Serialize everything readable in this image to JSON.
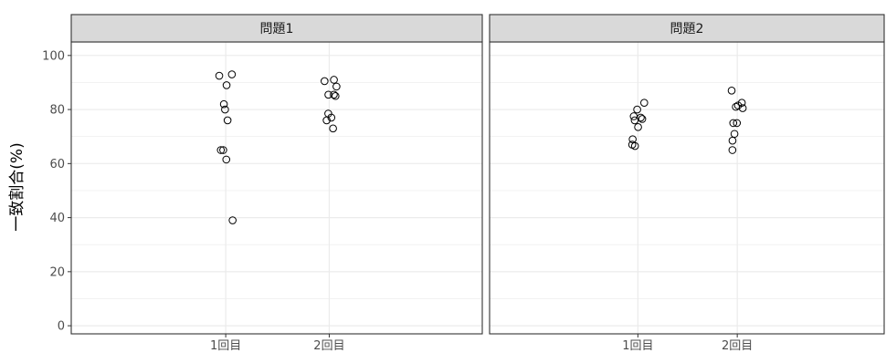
{
  "chart_data": {
    "type": "scatter",
    "ylabel": "一致割合(%)",
    "xlabel": "",
    "ylim": [
      -3,
      105
    ],
    "yticks": [
      0,
      20,
      40,
      60,
      80,
      100
    ],
    "categories": [
      "1回目",
      "2回目"
    ],
    "grid": true,
    "legend": "none",
    "point_style": "open circle",
    "colors": {
      "point_stroke": "#000000",
      "strip_fill": "#d9d9d9",
      "grid": "#ebebeb",
      "panel_border": "#333333"
    },
    "panels": [
      {
        "title": "問題1",
        "points": [
          {
            "x": "1回目",
            "y": 93
          },
          {
            "x": "1回目",
            "y": 92.5
          },
          {
            "x": "1回目",
            "y": 89
          },
          {
            "x": "1回目",
            "y": 82
          },
          {
            "x": "1回目",
            "y": 80
          },
          {
            "x": "1回目",
            "y": 76
          },
          {
            "x": "1回目",
            "y": 65
          },
          {
            "x": "1回目",
            "y": 65
          },
          {
            "x": "1回目",
            "y": 61.5
          },
          {
            "x": "1回目",
            "y": 39
          },
          {
            "x": "2回目",
            "y": 91
          },
          {
            "x": "2回目",
            "y": 90.5
          },
          {
            "x": "2回目",
            "y": 88.5
          },
          {
            "x": "2回目",
            "y": 85.5
          },
          {
            "x": "2回目",
            "y": 85.5
          },
          {
            "x": "2回目",
            "y": 85
          },
          {
            "x": "2回目",
            "y": 78.5
          },
          {
            "x": "2回目",
            "y": 77
          },
          {
            "x": "2回目",
            "y": 76
          },
          {
            "x": "2回目",
            "y": 73
          }
        ]
      },
      {
        "title": "問題2",
        "points": [
          {
            "x": "1回目",
            "y": 82.5
          },
          {
            "x": "1回目",
            "y": 80
          },
          {
            "x": "1回目",
            "y": 77.5
          },
          {
            "x": "1回目",
            "y": 77
          },
          {
            "x": "1回目",
            "y": 76.5
          },
          {
            "x": "1回目",
            "y": 76
          },
          {
            "x": "1回目",
            "y": 73.5
          },
          {
            "x": "1回目",
            "y": 69
          },
          {
            "x": "1回目",
            "y": 67
          },
          {
            "x": "1回目",
            "y": 66.5
          },
          {
            "x": "2回目",
            "y": 87
          },
          {
            "x": "2回目",
            "y": 82.5
          },
          {
            "x": "2回目",
            "y": 81.5
          },
          {
            "x": "2回目",
            "y": 81
          },
          {
            "x": "2回目",
            "y": 80.5
          },
          {
            "x": "2回目",
            "y": 75
          },
          {
            "x": "2回目",
            "y": 75
          },
          {
            "x": "2回目",
            "y": 71
          },
          {
            "x": "2回目",
            "y": 68.5
          },
          {
            "x": "2回目",
            "y": 65
          }
        ]
      }
    ]
  }
}
